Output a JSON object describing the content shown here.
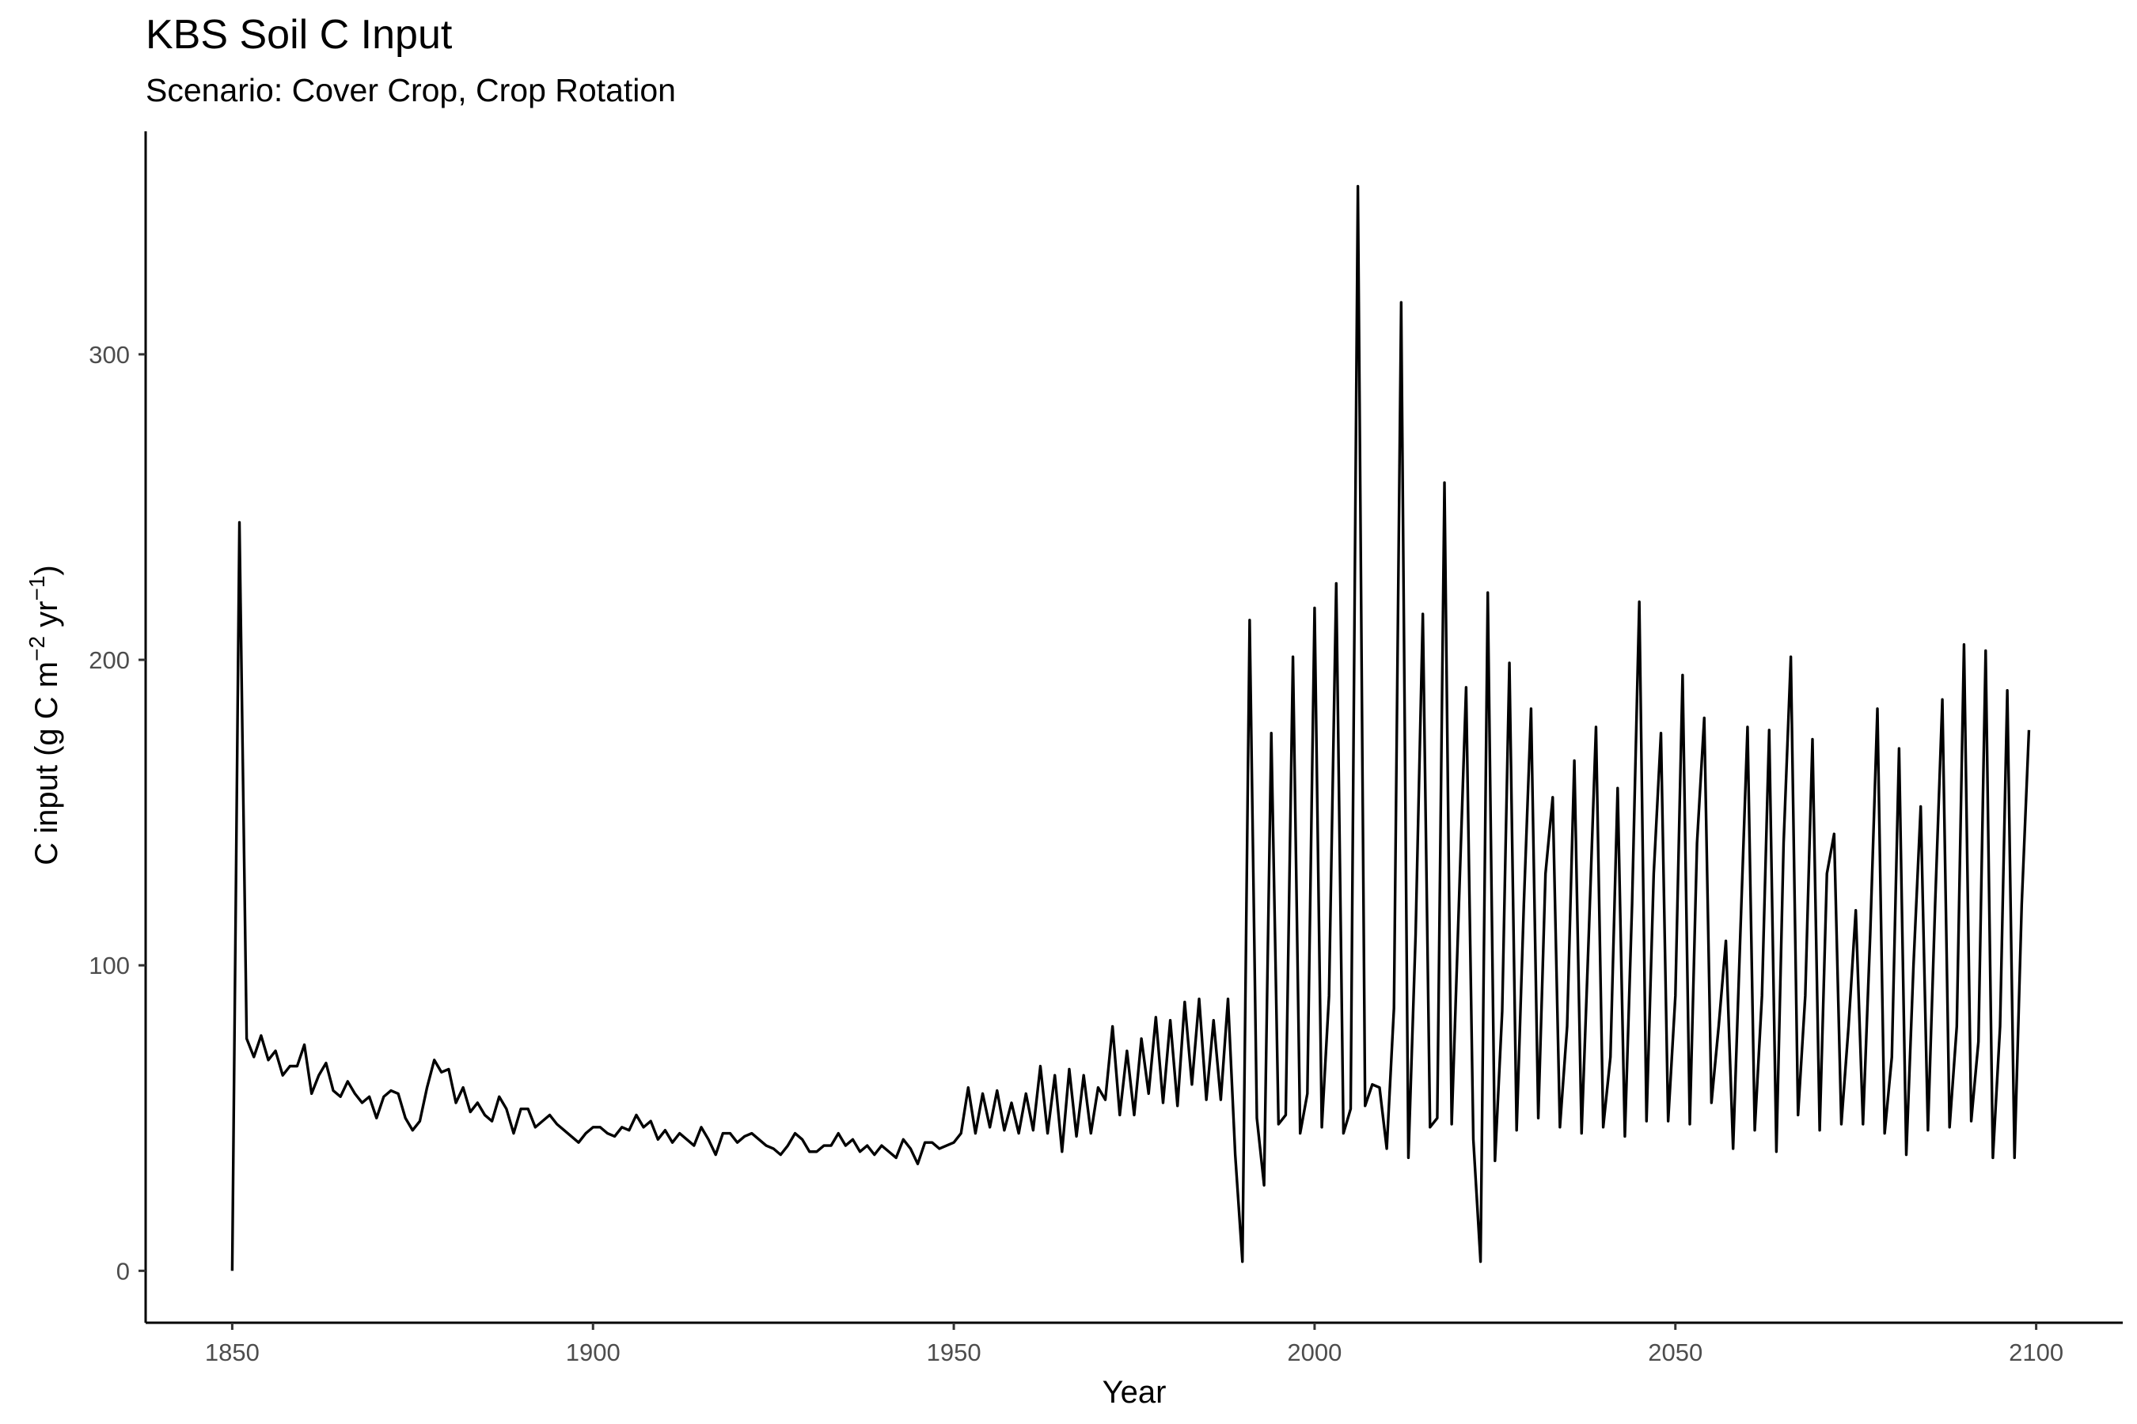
{
  "chart_data": {
    "type": "line",
    "title": "KBS Soil C Input",
    "subtitle": "Scenario: Cover Crop, Crop Rotation",
    "xlabel": "Year",
    "ylabel_main": "C input (g C m",
    "ylabel_sup1": "−2",
    "ylabel_mid": " yr",
    "ylabel_sup2": "−1",
    "ylabel_end": ")",
    "xlim": [
      1838,
      2112
    ],
    "ylim": [
      -17,
      373
    ],
    "xticks": [
      1850,
      1900,
      1950,
      2000,
      2050,
      2100
    ],
    "xtick_labels": [
      "1850",
      "1900",
      "1950",
      "2000",
      "2050",
      "2100"
    ],
    "yticks": [
      0,
      100,
      200,
      300
    ],
    "ytick_labels": [
      "0",
      "100",
      "200",
      "300"
    ],
    "grid": false,
    "legend": "none",
    "line_color": "#000000",
    "series": [
      {
        "x": [
          1850,
          1851,
          1852,
          1853,
          1854,
          1855,
          1856,
          1857,
          1858,
          1859,
          1860,
          1861,
          1862,
          1863,
          1864,
          1865,
          1866,
          1867,
          1868,
          1869,
          1870,
          1871,
          1872,
          1873,
          1874,
          1875,
          1876,
          1877,
          1878,
          1879,
          1880,
          1881,
          1882,
          1883,
          1884,
          1885,
          1886,
          1887,
          1888,
          1889,
          1890,
          1891,
          1892,
          1893,
          1894,
          1895,
          1896,
          1897,
          1898,
          1899,
          1900,
          1901,
          1902,
          1903,
          1904,
          1905,
          1906,
          1907,
          1908,
          1909,
          1910,
          1911,
          1912,
          1913,
          1914,
          1915,
          1916,
          1917,
          1918,
          1919,
          1920,
          1921,
          1922,
          1923,
          1924,
          1925,
          1926,
          1927,
          1928,
          1929,
          1930,
          1931,
          1932,
          1933,
          1934,
          1935,
          1936,
          1937,
          1938,
          1939,
          1940,
          1941,
          1942,
          1943,
          1944,
          1945,
          1946,
          1947,
          1948,
          1949,
          1950,
          1951,
          1952,
          1953,
          1954,
          1955,
          1956,
          1957,
          1958,
          1959,
          1960,
          1961,
          1962,
          1963,
          1964,
          1965,
          1966,
          1967,
          1968,
          1969,
          1970,
          1971,
          1972,
          1973,
          1974,
          1975,
          1976,
          1977,
          1978,
          1979,
          1980,
          1981,
          1982,
          1983,
          1984,
          1985,
          1986,
          1987,
          1988,
          1989,
          1990,
          1991,
          1992,
          1993,
          1994,
          1995,
          1996,
          1997,
          1998,
          1999,
          2000,
          2001,
          2002,
          2003,
          2004,
          2005,
          2006,
          2007,
          2008,
          2009,
          2010,
          2011,
          2012,
          2013,
          2014,
          2015,
          2016,
          2017,
          2018,
          2019,
          2020,
          2021,
          2022,
          2023,
          2024,
          2025,
          2026,
          2027,
          2028,
          2029,
          2030,
          2031,
          2032,
          2033,
          2034,
          2035,
          2036,
          2037,
          2038,
          2039,
          2040,
          2041,
          2042,
          2043,
          2044,
          2045,
          2046,
          2047,
          2048,
          2049,
          2050,
          2051,
          2052,
          2053,
          2054,
          2055,
          2056,
          2057,
          2058,
          2059,
          2060,
          2061,
          2062,
          2063,
          2064,
          2065,
          2066,
          2067,
          2068,
          2069,
          2070,
          2071,
          2072,
          2073,
          2074,
          2075,
          2076,
          2077,
          2078,
          2079,
          2080,
          2081,
          2082,
          2083,
          2084,
          2085,
          2086,
          2087,
          2088,
          2089,
          2090,
          2091,
          2092,
          2093,
          2094,
          2095,
          2096,
          2097,
          2098,
          2099
        ],
        "y": [
          0,
          245,
          76,
          70,
          77,
          69,
          72,
          64,
          67,
          67,
          74,
          58,
          64,
          68,
          59,
          57,
          62,
          58,
          55,
          57,
          50,
          57,
          59,
          58,
          50,
          46,
          49,
          60,
          69,
          65,
          66,
          55,
          60,
          52,
          55,
          51,
          49,
          57,
          53,
          45,
          53,
          53,
          47,
          49,
          51,
          48,
          46,
          44,
          42,
          45,
          47,
          47,
          45,
          44,
          47,
          46,
          51,
          47,
          49,
          43,
          46,
          42,
          45,
          43,
          41,
          47,
          43,
          38,
          45,
          45,
          42,
          44,
          45,
          43,
          41,
          40,
          38,
          41,
          45,
          43,
          39,
          39,
          41,
          41,
          45,
          41,
          43,
          39,
          41,
          38,
          41,
          39,
          37,
          43,
          40,
          35,
          42,
          42,
          40,
          41,
          42,
          45,
          60,
          45,
          58,
          47,
          59,
          46,
          55,
          45,
          58,
          46,
          67,
          45,
          64,
          39,
          66,
          44,
          64,
          45,
          60,
          56,
          80,
          51,
          72,
          51,
          76,
          58,
          83,
          55,
          82,
          54,
          88,
          61,
          89,
          56,
          82,
          56,
          89,
          38,
          3,
          213,
          50,
          28,
          176,
          48,
          51,
          201,
          45,
          58,
          217,
          47,
          90,
          225,
          45,
          53,
          355,
          54,
          61,
          60,
          40,
          86,
          317,
          37,
          110,
          215,
          47,
          50,
          258,
          48,
          120,
          191,
          43,
          3,
          222,
          36,
          85,
          199,
          46,
          120,
          184,
          50,
          130,
          155,
          47,
          80,
          167,
          45,
          110,
          178,
          47,
          70,
          158,
          44,
          120,
          219,
          49,
          130,
          176,
          49,
          90,
          195,
          48,
          140,
          181,
          55,
          80,
          108,
          40,
          110,
          178,
          46,
          90,
          177,
          39,
          140,
          201,
          51,
          90,
          174,
          46,
          130,
          143,
          48,
          80,
          118,
          48,
          110,
          184,
          45,
          70,
          171,
          38,
          100,
          152,
          46,
          120,
          187,
          47,
          80,
          205,
          49,
          75,
          203,
          37,
          80,
          190,
          37,
          120,
          177
        ]
      }
    ]
  }
}
